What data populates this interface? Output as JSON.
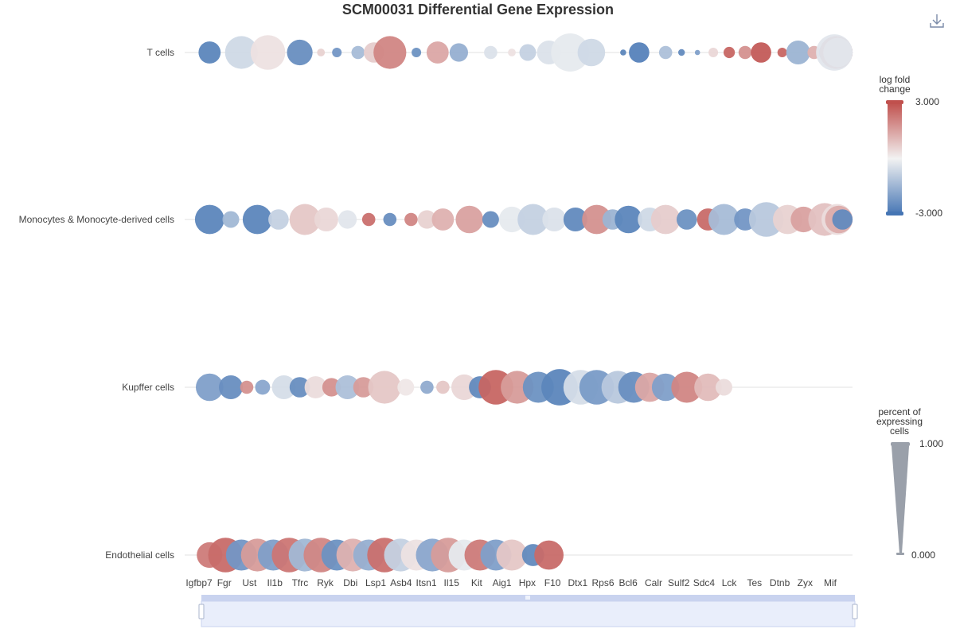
{
  "title": "SCM00031 Differential Gene Expression",
  "toolbar": {
    "download_icon": "download-icon"
  },
  "chart_data": {
    "type": "scatter",
    "subtype": "bubble-dot-plot",
    "title": "SCM00031 Differential Gene Expression",
    "y_categories": [
      "T cells",
      "Monocytes & Monocyte-derived cells",
      "Kupffer cells",
      "Endothelial cells"
    ],
    "x_tick_labels": [
      "Igfbp7",
      "Fgr",
      "Ust",
      "Il1b",
      "Tfrc",
      "Ryk",
      "Dbi",
      "Lsp1",
      "Asb4",
      "Itsn1",
      "Il15",
      "Kit",
      "Aig1",
      "Hpx",
      "F10",
      "Dtx1",
      "Rps6",
      "Bcl6",
      "Calr",
      "Sulf2",
      "Sdc4",
      "Lck",
      "Tes",
      "Dtnb",
      "Zyx",
      "Mif"
    ],
    "color_legend": {
      "title": "log fold change",
      "max": 3.0,
      "min": -3.0,
      "max_label": "3.000",
      "min_label": "-3.000",
      "colors": [
        "#4575b4",
        "#f2f2f2",
        "#c0504d"
      ]
    },
    "size_legend": {
      "title": "percent of expressing cells",
      "max": 1.0,
      "min": 0.0,
      "max_label": "1.000",
      "min_label": "0.000",
      "color": "#9aa0aa"
    },
    "grid": true,
    "datazoom": {
      "start": 0,
      "end": 100
    },
    "series": [
      {
        "name": "T cells",
        "points": [
          {
            "x": 0.2,
            "lfc": -2.6,
            "pct": 0.55
          },
          {
            "x": 0.8,
            "lfc": -0.6,
            "pct": 0.85
          },
          {
            "x": 1.3,
            "lfc": 0.3,
            "pct": 0.9
          },
          {
            "x": 1.9,
            "lfc": -2.4,
            "pct": 0.65
          },
          {
            "x": 2.3,
            "lfc": 0.6,
            "pct": 0.15
          },
          {
            "x": 2.6,
            "lfc": -2.2,
            "pct": 0.2
          },
          {
            "x": 3.0,
            "lfc": -1.3,
            "pct": 0.3
          },
          {
            "x": 3.3,
            "lfc": 0.7,
            "pct": 0.5
          },
          {
            "x": 3.6,
            "lfc": 2.0,
            "pct": 0.85
          },
          {
            "x": 4.1,
            "lfc": -2.3,
            "pct": 0.2
          },
          {
            "x": 4.5,
            "lfc": 1.4,
            "pct": 0.55
          },
          {
            "x": 4.9,
            "lfc": -1.6,
            "pct": 0.45
          },
          {
            "x": 5.5,
            "lfc": -0.4,
            "pct": 0.3
          },
          {
            "x": 5.9,
            "lfc": 0.3,
            "pct": 0.15
          },
          {
            "x": 6.2,
            "lfc": -0.8,
            "pct": 0.4
          },
          {
            "x": 6.6,
            "lfc": -0.4,
            "pct": 0.6
          },
          {
            "x": 7.0,
            "lfc": -0.2,
            "pct": 1.0
          },
          {
            "x": 7.4,
            "lfc": -0.6,
            "pct": 0.7
          },
          {
            "x": 8.0,
            "lfc": -2.6,
            "pct": 0.1
          },
          {
            "x": 8.3,
            "lfc": -2.7,
            "pct": 0.5
          },
          {
            "x": 8.8,
            "lfc": -1.2,
            "pct": 0.3
          },
          {
            "x": 9.1,
            "lfc": -2.5,
            "pct": 0.12
          },
          {
            "x": 9.4,
            "lfc": -2.0,
            "pct": 0.08
          },
          {
            "x": 9.7,
            "lfc": 0.5,
            "pct": 0.2
          },
          {
            "x": 10.0,
            "lfc": 2.6,
            "pct": 0.25
          },
          {
            "x": 10.3,
            "lfc": 1.8,
            "pct": 0.3
          },
          {
            "x": 10.6,
            "lfc": 2.8,
            "pct": 0.5
          },
          {
            "x": 11.0,
            "lfc": 2.6,
            "pct": 0.2
          },
          {
            "x": 11.3,
            "lfc": -1.5,
            "pct": 0.6
          },
          {
            "x": 11.6,
            "lfc": 1.2,
            "pct": 0.3
          },
          {
            "x": 11.9,
            "lfc": -2.8,
            "pct": 0.55
          },
          {
            "x": 12.4,
            "lfc": -2.4,
            "pct": 0.45
          },
          {
            "x": 13.1,
            "lfc": -1.8,
            "pct": 0.5
          },
          {
            "x": 13.5,
            "lfc": 2.3,
            "pct": 0.25
          },
          {
            "x": 13.8,
            "lfc": -2.5,
            "pct": 0.35
          },
          {
            "x": 14.3,
            "lfc": 1.0,
            "pct": 0.55
          },
          {
            "x": 14.8,
            "lfc": 0.5,
            "pct": 0.4
          },
          {
            "x": 15.2,
            "lfc": 2.4,
            "pct": 0.2
          },
          {
            "x": 15.6,
            "lfc": -1.8,
            "pct": 0.5
          },
          {
            "x": 16.0,
            "lfc": -0.3,
            "pct": 0.25
          },
          {
            "x": 16.3,
            "lfc": -2.3,
            "pct": 0.35
          },
          {
            "x": 16.7,
            "lfc": -2.7,
            "pct": 0.75
          },
          {
            "x": 17.1,
            "lfc": 2.0,
            "pct": 0.7
          },
          {
            "x": 17.5,
            "lfc": -1.7,
            "pct": 0.8
          },
          {
            "x": 17.9,
            "lfc": 2.8,
            "pct": 0.85
          },
          {
            "x": 18.3,
            "lfc": 1.5,
            "pct": 0.75
          },
          {
            "x": 18.7,
            "lfc": -2.5,
            "pct": 0.55
          },
          {
            "x": 19.1,
            "lfc": 0.5,
            "pct": 0.75
          },
          {
            "x": 19.5,
            "lfc": -0.3,
            "pct": 0.95
          }
        ]
      },
      {
        "name": "Monocytes & Monocyte-derived cells",
        "points": [
          {
            "x": 0.2,
            "lfc": -2.6,
            "pct": 0.75
          },
          {
            "x": 0.6,
            "lfc": -1.4,
            "pct": 0.4
          },
          {
            "x": 1.1,
            "lfc": -2.6,
            "pct": 0.75
          },
          {
            "x": 1.5,
            "lfc": -0.8,
            "pct": 0.5
          },
          {
            "x": 2.0,
            "lfc": 0.8,
            "pct": 0.8
          },
          {
            "x": 2.4,
            "lfc": 0.5,
            "pct": 0.6
          },
          {
            "x": 2.8,
            "lfc": -0.3,
            "pct": 0.45
          },
          {
            "x": 3.2,
            "lfc": 2.4,
            "pct": 0.3
          },
          {
            "x": 3.6,
            "lfc": -2.4,
            "pct": 0.3
          },
          {
            "x": 4.0,
            "lfc": 2.0,
            "pct": 0.3
          },
          {
            "x": 4.3,
            "lfc": 0.6,
            "pct": 0.45
          },
          {
            "x": 4.6,
            "lfc": 1.2,
            "pct": 0.55
          },
          {
            "x": 5.1,
            "lfc": 1.5,
            "pct": 0.7
          },
          {
            "x": 5.5,
            "lfc": -2.4,
            "pct": 0.4
          },
          {
            "x": 5.9,
            "lfc": -0.2,
            "pct": 0.65
          },
          {
            "x": 6.3,
            "lfc": -0.8,
            "pct": 0.8
          },
          {
            "x": 6.7,
            "lfc": -0.4,
            "pct": 0.6
          },
          {
            "x": 7.1,
            "lfc": -2.5,
            "pct": 0.6
          },
          {
            "x": 7.5,
            "lfc": 1.8,
            "pct": 0.75
          },
          {
            "x": 7.8,
            "lfc": -1.5,
            "pct": 0.5
          },
          {
            "x": 8.1,
            "lfc": -2.6,
            "pct": 0.7
          },
          {
            "x": 8.5,
            "lfc": -0.6,
            "pct": 0.6
          },
          {
            "x": 8.8,
            "lfc": 0.7,
            "pct": 0.75
          },
          {
            "x": 9.2,
            "lfc": -2.3,
            "pct": 0.5
          },
          {
            "x": 9.6,
            "lfc": 2.5,
            "pct": 0.55
          },
          {
            "x": 9.9,
            "lfc": -1.3,
            "pct": 0.8
          },
          {
            "x": 10.3,
            "lfc": -2.2,
            "pct": 0.55
          },
          {
            "x": 10.7,
            "lfc": -1.0,
            "pct": 0.9
          },
          {
            "x": 11.1,
            "lfc": 0.6,
            "pct": 0.75
          },
          {
            "x": 11.4,
            "lfc": 1.5,
            "pct": 0.65
          },
          {
            "x": 11.8,
            "lfc": 0.9,
            "pct": 0.85
          },
          {
            "x": 12.2,
            "lfc": -1.7,
            "pct": 0.6
          },
          {
            "x": 12.5,
            "lfc": -0.9,
            "pct": 0.7
          },
          {
            "x": 12.9,
            "lfc": 0.4,
            "pct": 0.8
          },
          {
            "x": 13.2,
            "lfc": 1.3,
            "pct": 0.7
          },
          {
            "x": 13.5,
            "lfc": -2.5,
            "pct": 0.5
          }
        ]
      },
      {
        "name": "Kupffer cells",
        "points": [
          {
            "x": 0.2,
            "lfc": -2.0,
            "pct": 0.7
          },
          {
            "x": 0.6,
            "lfc": -2.4,
            "pct": 0.6
          },
          {
            "x": 0.9,
            "lfc": 1.8,
            "pct": 0.3
          },
          {
            "x": 1.2,
            "lfc": -1.8,
            "pct": 0.35
          },
          {
            "x": 1.6,
            "lfc": -0.5,
            "pct": 0.6
          },
          {
            "x": 1.9,
            "lfc": -2.4,
            "pct": 0.5
          },
          {
            "x": 2.2,
            "lfc": 0.4,
            "pct": 0.55
          },
          {
            "x": 2.5,
            "lfc": 1.8,
            "pct": 0.45
          },
          {
            "x": 2.8,
            "lfc": -1.2,
            "pct": 0.6
          },
          {
            "x": 3.1,
            "lfc": 1.6,
            "pct": 0.5
          },
          {
            "x": 3.5,
            "lfc": 0.8,
            "pct": 0.85
          },
          {
            "x": 3.9,
            "lfc": 0.2,
            "pct": 0.4
          },
          {
            "x": 4.3,
            "lfc": -1.7,
            "pct": 0.3
          },
          {
            "x": 4.6,
            "lfc": 0.8,
            "pct": 0.3
          },
          {
            "x": 5.0,
            "lfc": 0.5,
            "pct": 0.65
          },
          {
            "x": 5.3,
            "lfc": -2.5,
            "pct": 0.55
          },
          {
            "x": 5.6,
            "lfc": 2.6,
            "pct": 0.9
          },
          {
            "x": 6.0,
            "lfc": 1.6,
            "pct": 0.85
          },
          {
            "x": 6.4,
            "lfc": -2.3,
            "pct": 0.8
          },
          {
            "x": 6.8,
            "lfc": -2.6,
            "pct": 0.95
          },
          {
            "x": 7.2,
            "lfc": -0.5,
            "pct": 0.9
          },
          {
            "x": 7.5,
            "lfc": -2.1,
            "pct": 0.9
          },
          {
            "x": 7.9,
            "lfc": -1.0,
            "pct": 0.85
          },
          {
            "x": 8.2,
            "lfc": -2.4,
            "pct": 0.8
          },
          {
            "x": 8.5,
            "lfc": 1.4,
            "pct": 0.75
          },
          {
            "x": 8.8,
            "lfc": -2.0,
            "pct": 0.7
          },
          {
            "x": 9.2,
            "lfc": 2.0,
            "pct": 0.8
          },
          {
            "x": 9.6,
            "lfc": 1.0,
            "pct": 0.7
          },
          {
            "x": 9.9,
            "lfc": 0.4,
            "pct": 0.4
          }
        ]
      },
      {
        "name": "Endothelial cells",
        "points": [
          {
            "x": 0.2,
            "lfc": 2.2,
            "pct": 0.65
          },
          {
            "x": 0.5,
            "lfc": 2.5,
            "pct": 0.9
          },
          {
            "x": 0.8,
            "lfc": -2.2,
            "pct": 0.8
          },
          {
            "x": 1.1,
            "lfc": 1.6,
            "pct": 0.85
          },
          {
            "x": 1.4,
            "lfc": -2.0,
            "pct": 0.8
          },
          {
            "x": 1.7,
            "lfc": 2.3,
            "pct": 0.9
          },
          {
            "x": 2.0,
            "lfc": -1.4,
            "pct": 0.85
          },
          {
            "x": 2.3,
            "lfc": 2.0,
            "pct": 0.9
          },
          {
            "x": 2.6,
            "lfc": -2.3,
            "pct": 0.8
          },
          {
            "x": 2.9,
            "lfc": 1.2,
            "pct": 0.85
          },
          {
            "x": 3.2,
            "lfc": -1.6,
            "pct": 0.8
          },
          {
            "x": 3.5,
            "lfc": 2.4,
            "pct": 0.9
          },
          {
            "x": 3.8,
            "lfc": -0.8,
            "pct": 0.85
          },
          {
            "x": 4.1,
            "lfc": 0.3,
            "pct": 0.8
          },
          {
            "x": 4.4,
            "lfc": -1.8,
            "pct": 0.85
          },
          {
            "x": 4.7,
            "lfc": 1.6,
            "pct": 0.9
          },
          {
            "x": 5.0,
            "lfc": -0.2,
            "pct": 0.8
          },
          {
            "x": 5.3,
            "lfc": 2.2,
            "pct": 0.8
          },
          {
            "x": 5.6,
            "lfc": -2.0,
            "pct": 0.8
          },
          {
            "x": 5.9,
            "lfc": 0.8,
            "pct": 0.8
          },
          {
            "x": 6.3,
            "lfc": -2.5,
            "pct": 0.55
          },
          {
            "x": 6.6,
            "lfc": 2.5,
            "pct": 0.75
          }
        ]
      }
    ]
  }
}
